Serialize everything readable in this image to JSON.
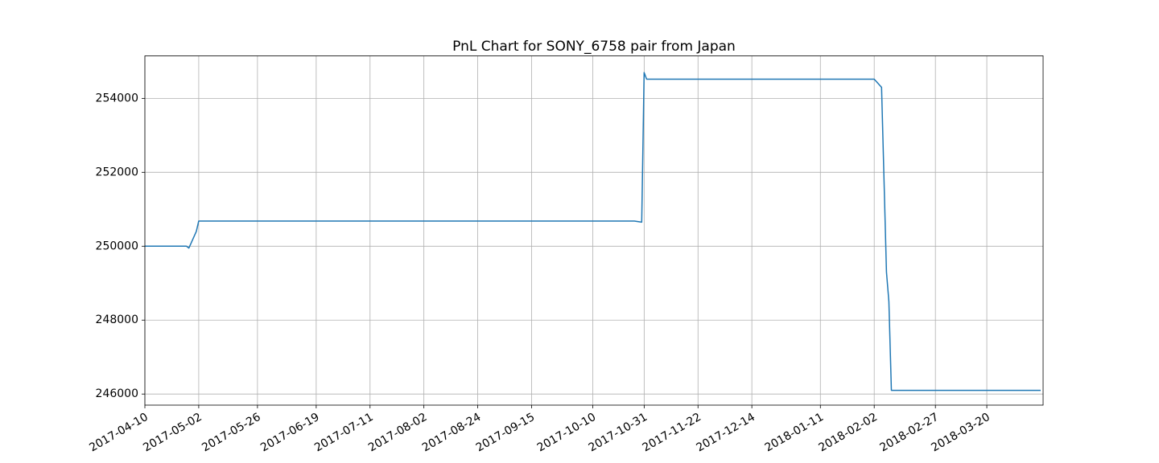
{
  "chart_data": {
    "type": "line",
    "title": "PnL Chart for SONY_6758 pair from Japan",
    "xlabel": "",
    "ylabel": "",
    "grid": true,
    "xlim": [
      "2017-04-10",
      "2018-04-12"
    ],
    "ylim": [
      245700,
      255150
    ],
    "x_ticks": [
      "2017-04-10",
      "2017-05-02",
      "2017-05-26",
      "2017-06-19",
      "2017-07-11",
      "2017-08-02",
      "2017-08-24",
      "2017-09-15",
      "2017-10-10",
      "2017-10-31",
      "2017-11-22",
      "2017-12-14",
      "2018-01-11",
      "2018-02-02",
      "2018-02-27",
      "2018-03-20"
    ],
    "y_ticks": [
      246000,
      248000,
      250000,
      252000,
      254000
    ],
    "series": [
      {
        "color": "#1f77b4",
        "x": [
          "2017-04-10",
          "2017-04-27",
          "2017-04-28",
          "2017-05-01",
          "2017-05-02",
          "2017-10-27",
          "2017-10-30",
          "2017-10-31",
          "2017-11-01",
          "2018-02-02",
          "2018-02-05",
          "2018-02-07",
          "2018-02-08",
          "2018-02-09",
          "2018-04-11"
        ],
        "y": [
          250000,
          250000,
          249950,
          250400,
          250680,
          250680,
          250650,
          254700,
          254520,
          254520,
          254300,
          249300,
          248500,
          246100,
          246100
        ]
      }
    ]
  }
}
